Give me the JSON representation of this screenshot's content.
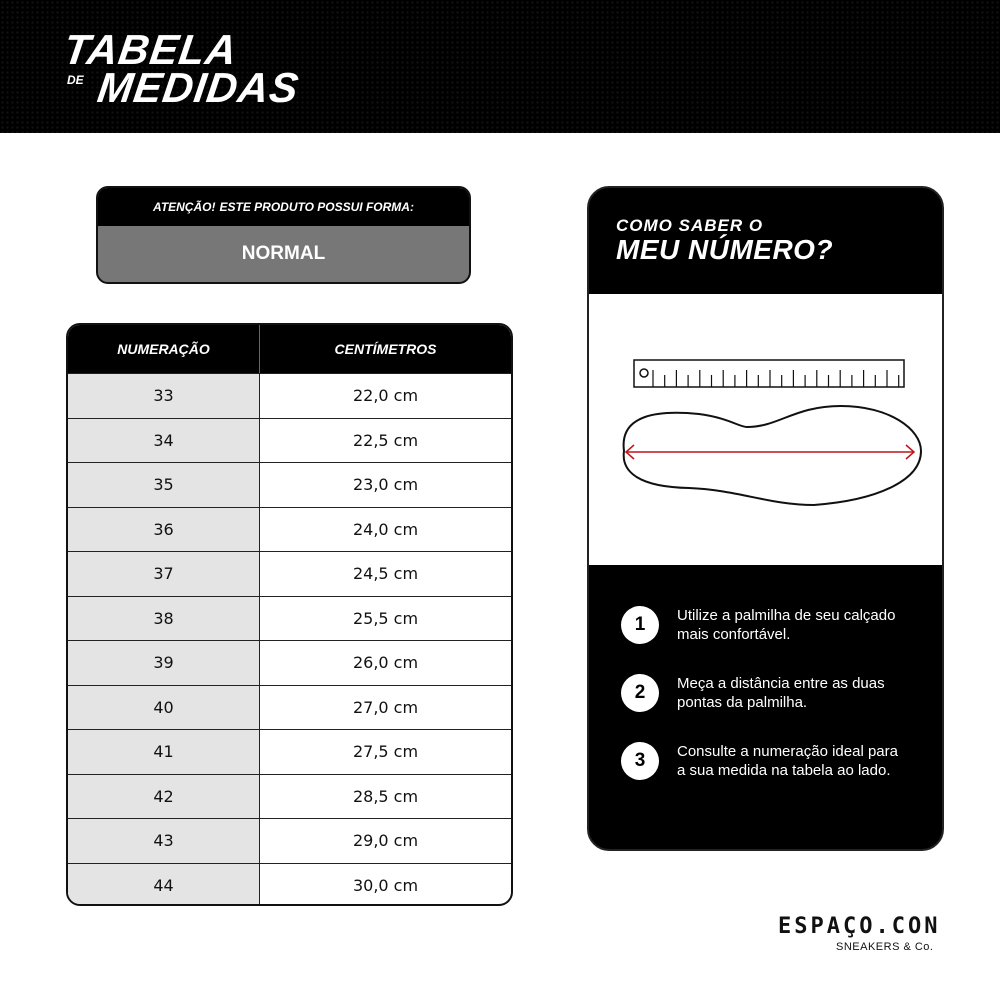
{
  "header": {
    "title_line1": "TABELA",
    "title_de": "DE",
    "title_line2": "MEDIDAS"
  },
  "notice": {
    "label_bold": "ATENÇÃO!",
    "label": "ESTE PRODUTO POSSUI FORMA:",
    "value": "NORMAL"
  },
  "table": {
    "headers": [
      "NUMERAÇÃO",
      "CENTÍMETROS"
    ],
    "rows": [
      [
        "33",
        "22,0 cm"
      ],
      [
        "34",
        "22,5 cm"
      ],
      [
        "35",
        "23,0 cm"
      ],
      [
        "36",
        "24,0 cm"
      ],
      [
        "37",
        "24,5 cm"
      ],
      [
        "38",
        "25,5 cm"
      ],
      [
        "39",
        "26,0 cm"
      ],
      [
        "40",
        "27,0 cm"
      ],
      [
        "41",
        "27,5 cm"
      ],
      [
        "42",
        "28,5 cm"
      ],
      [
        "43",
        "29,0 cm"
      ],
      [
        "44",
        "30,0 cm"
      ]
    ]
  },
  "guide": {
    "title_line1": "COMO SABER O",
    "title_line2": "MEU NÚMERO?",
    "steps": [
      {
        "n": "1",
        "text": "Utilize a palmilha de seu calçado mais confortável."
      },
      {
        "n": "2",
        "text": "Meça a distância entre as duas pontas da palmilha."
      },
      {
        "n": "3",
        "text": "Consulte a numeração ideal para a sua medida na tabela ao lado."
      }
    ],
    "arrow_color": "#c0141c"
  },
  "brand": {
    "logo": "ESPAÇO.CON",
    "tagline": "SNEAKERS & Co."
  }
}
